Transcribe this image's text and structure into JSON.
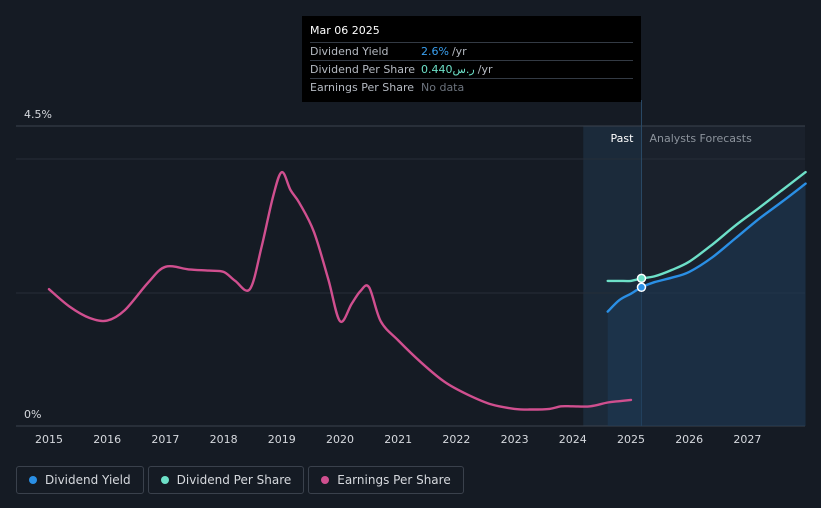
{
  "chart_data": {
    "type": "line",
    "title": "",
    "y_axis": {
      "top_label": "4.5%",
      "bottom_label": "0%",
      "ylim": [
        0,
        4.5
      ]
    },
    "x_ticks": [
      "2015",
      "2016",
      "2017",
      "2018",
      "2019",
      "2020",
      "2021",
      "2022",
      "2023",
      "2024",
      "2025",
      "2026",
      "2027"
    ],
    "xlim": [
      2014.4,
      2028.0
    ],
    "regions": {
      "past_label": "Past",
      "forecast_label": "Analysts Forecasts",
      "divider_x": 2025.18,
      "highlight_start_x": 2024.18
    },
    "series": [
      {
        "name": "Earnings Per Share",
        "color": "#d04f8f",
        "x": [
          2015.0,
          2015.35,
          2015.7,
          2016.0,
          2016.3,
          2016.7,
          2017.0,
          2017.4,
          2017.75,
          2018.0,
          2018.2,
          2018.45,
          2018.65,
          2018.85,
          2019.0,
          2019.15,
          2019.3,
          2019.55,
          2019.8,
          2020.0,
          2020.2,
          2020.35,
          2020.5,
          2020.7,
          2021.0,
          2021.4,
          2021.8,
          2022.2,
          2022.6,
          2023.0,
          2023.3,
          2023.6,
          2023.8,
          2024.0,
          2024.3,
          2024.6,
          2024.8,
          2025.0
        ],
        "values": [
          1.95,
          1.68,
          1.5,
          1.46,
          1.62,
          2.05,
          2.3,
          2.26,
          2.24,
          2.22,
          2.08,
          1.95,
          2.6,
          3.4,
          3.78,
          3.5,
          3.3,
          2.85,
          2.1,
          1.45,
          1.72,
          1.92,
          1.98,
          1.45,
          1.15,
          0.8,
          0.5,
          0.3,
          0.15,
          0.08,
          0.07,
          0.08,
          0.12,
          0.12,
          0.12,
          0.18,
          0.2,
          0.22
        ]
      },
      {
        "name": "Dividend Per Share",
        "color": "#6de0c8",
        "x": [
          2024.6,
          2024.8,
          2025.0,
          2025.18,
          2025.4,
          2025.7,
          2026.0,
          2026.4,
          2026.8,
          2027.2,
          2027.6,
          2028.0
        ],
        "values": [
          2.08,
          2.08,
          2.08,
          2.12,
          2.15,
          2.25,
          2.38,
          2.65,
          2.95,
          3.22,
          3.5,
          3.78
        ]
      },
      {
        "name": "Dividend Yield",
        "color": "#2a8fe5",
        "x": [
          2024.6,
          2024.8,
          2025.0,
          2025.18,
          2025.4,
          2025.7,
          2026.0,
          2026.4,
          2026.8,
          2027.2,
          2027.6,
          2028.0
        ],
        "values": [
          1.6,
          1.78,
          1.88,
          1.98,
          2.06,
          2.13,
          2.22,
          2.45,
          2.75,
          3.05,
          3.32,
          3.6
        ]
      }
    ]
  },
  "tooltip": {
    "date": "Mar 06 2025",
    "rows": [
      {
        "label": "Dividend Yield",
        "value": "2.6%",
        "unit": "/yr"
      },
      {
        "label": "Dividend Per Share",
        "value": "0.440ر.س",
        "unit": "/yr"
      },
      {
        "label": "Earnings Per Share",
        "value": "No data",
        "unit": ""
      }
    ]
  },
  "legend": [
    {
      "label": "Dividend Yield",
      "color": "#2a8fe5"
    },
    {
      "label": "Dividend Per Share",
      "color": "#6de0c8"
    },
    {
      "label": "Earnings Per Share",
      "color": "#d04f8f"
    }
  ]
}
